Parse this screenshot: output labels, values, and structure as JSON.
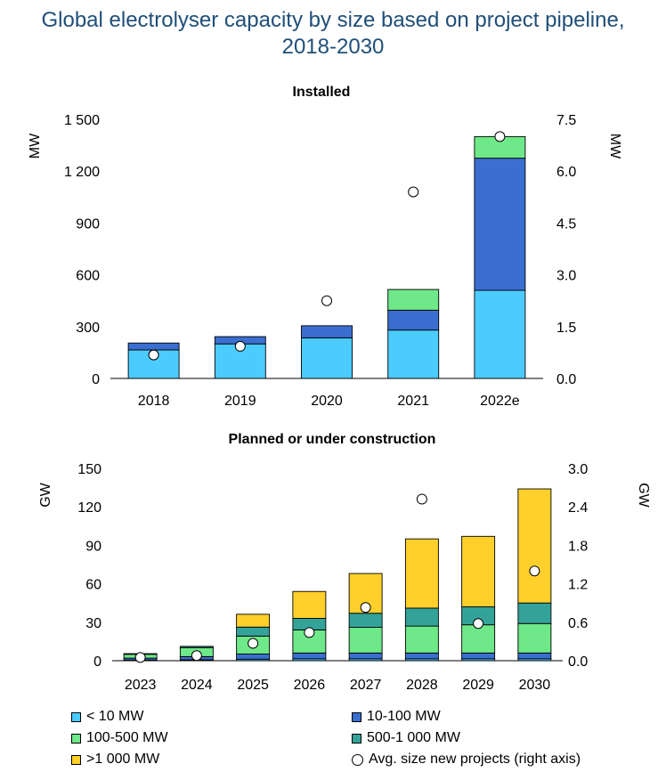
{
  "title_line1": "Global electrolyser capacity by size based on project pipeline,",
  "title_line2": "2018-2030",
  "colors": {
    "lt10": "#4ccbff",
    "10_100": "#3a6fd0",
    "100_500": "#6ee888",
    "500_1000": "#33a39a",
    "gt1000": "#ffd02b"
  },
  "chart_data": [
    {
      "type": "bar",
      "stacked": true,
      "title": "Installed",
      "ylabel": "MW",
      "ylabel_right": "MW",
      "ylim": [
        0,
        1500
      ],
      "ylim_right": [
        0,
        7.5
      ],
      "yticks": [
        0,
        300,
        600,
        900,
        1200,
        1500
      ],
      "ytick_labels": [
        "0",
        "300",
        "600",
        "900",
        "1 200",
        "1 500"
      ],
      "yticks_right_labels": [
        "0.0",
        "1.5",
        "3.0",
        "4.5",
        "6.0",
        "7.5"
      ],
      "categories": [
        "2018",
        "2019",
        "2020",
        "2021",
        "2022e"
      ],
      "series": [
        {
          "name": "< 10 MW",
          "color_key": "lt10",
          "values": [
            165,
            200,
            235,
            280,
            510
          ]
        },
        {
          "name": "10-100 MW",
          "color_key": "10_100",
          "values": [
            40,
            42,
            70,
            115,
            765
          ]
        },
        {
          "name": "100-500 MW",
          "color_key": "100_500",
          "values": [
            0,
            0,
            0,
            120,
            125
          ]
        },
        {
          "name": "500-1 000 MW",
          "color_key": "500_1000",
          "values": [
            0,
            0,
            0,
            0,
            0
          ]
        },
        {
          "name": ">1 000 MW",
          "color_key": "gt1000",
          "values": [
            0,
            0,
            0,
            0,
            0
          ]
        }
      ],
      "avg_size_right": [
        0.68,
        0.93,
        2.25,
        5.4,
        7.0
      ]
    },
    {
      "type": "bar",
      "stacked": true,
      "title": "Planned or under construction",
      "ylabel": "GW",
      "ylabel_right": "GW",
      "ylim": [
        0,
        150
      ],
      "ylim_right": [
        0,
        3.0
      ],
      "yticks": [
        0,
        30,
        60,
        90,
        120,
        150
      ],
      "ytick_labels": [
        "0",
        "30",
        "60",
        "90",
        "120",
        "150"
      ],
      "yticks_right_labels": [
        "0.0",
        "0.6",
        "1.2",
        "1.8",
        "2.4",
        "3.0"
      ],
      "categories": [
        "2023",
        "2024",
        "2025",
        "2026",
        "2027",
        "2028",
        "2029",
        "2030"
      ],
      "series": [
        {
          "name": "< 10 MW",
          "color_key": "lt10",
          "values": [
            0.5,
            0.7,
            1.2,
            1.5,
            1.5,
            1.5,
            1.5,
            1.5
          ]
        },
        {
          "name": "10-100 MW",
          "color_key": "10_100",
          "values": [
            1.5,
            2.5,
            4,
            4.5,
            4.5,
            4.5,
            4.5,
            4.5
          ]
        },
        {
          "name": "100-500 MW",
          "color_key": "100_500",
          "values": [
            3,
            7,
            14,
            18,
            20,
            21,
            22,
            23
          ]
        },
        {
          "name": "500-1 000 MW",
          "color_key": "500_1000",
          "values": [
            0.5,
            1,
            7,
            9,
            11,
            14,
            14,
            16
          ]
        },
        {
          "name": ">1 000 MW",
          "color_key": "gt1000",
          "values": [
            0,
            0,
            10,
            21,
            31,
            54,
            55,
            89
          ]
        }
      ],
      "avg_size_right": [
        0.05,
        0.08,
        0.27,
        0.44,
        0.83,
        2.52,
        0.58,
        1.4
      ]
    }
  ],
  "legend": [
    {
      "label": "< 10 MW",
      "color_key": "lt10",
      "marker": "square"
    },
    {
      "label": "10-100 MW",
      "color_key": "10_100",
      "marker": "square"
    },
    {
      "label": "100-500 MW",
      "color_key": "100_500",
      "marker": "square"
    },
    {
      "label": "500-1 000 MW",
      "color_key": "500_1000",
      "marker": "square"
    },
    {
      "label": ">1 000 MW",
      "color_key": "gt1000",
      "marker": "square"
    },
    {
      "label": "Avg. size new projects (right axis)",
      "color_key": "",
      "marker": "circle"
    }
  ]
}
